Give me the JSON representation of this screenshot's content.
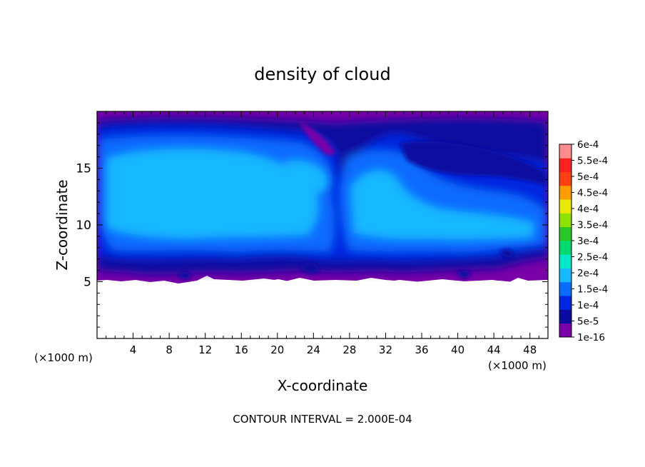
{
  "chart_data": {
    "type": "heatmap",
    "title": "density of cloud",
    "xlabel": "X-coordinate",
    "ylabel": "Z-coordinate",
    "x_unit_label": "(×1000 m)",
    "z_unit_label": "(×1000 m)",
    "xlim": [
      0,
      50
    ],
    "ylim": [
      0,
      20
    ],
    "x_ticks": [
      4,
      8,
      12,
      16,
      20,
      24,
      28,
      32,
      36,
      40,
      44,
      48
    ],
    "y_ticks": [
      5,
      10,
      15
    ],
    "footer": "CONTOUR INTERVAL = 2.000E-04",
    "colorbar": {
      "labels": [
        "1e-16",
        "5e-5",
        "1e-4",
        "1.5e-4",
        "2e-4",
        "2.5e-4",
        "3e-4",
        "3.5e-4",
        "4e-4",
        "4.5e-4",
        "5e-4",
        "5.5e-4",
        "6e-4"
      ],
      "colors": [
        "#7a00a8",
        "#0a0aa0",
        "#0028e0",
        "#0a6cff",
        "#18b8ff",
        "#00e8c8",
        "#00d870",
        "#28c828",
        "#90e000",
        "#e8e800",
        "#ff9c00",
        "#ff4010",
        "#ff2020",
        "#ff8c8c"
      ]
    },
    "field_description_levels": {
      "cloud_base_km": 5.1,
      "cloud_top_km": 19.6
    }
  }
}
